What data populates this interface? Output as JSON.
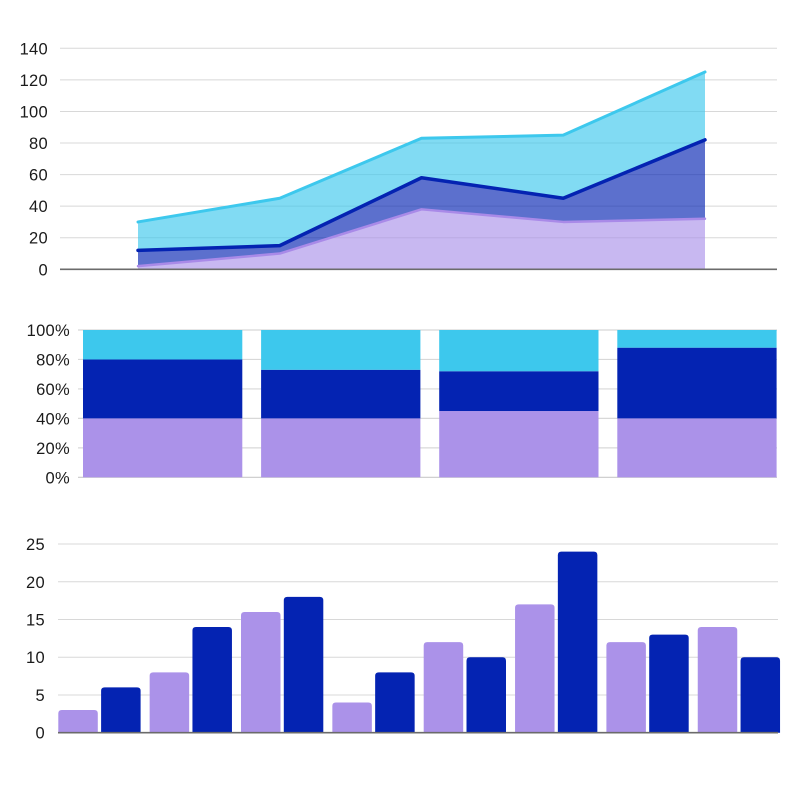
{
  "page": {
    "background": "#ffffff"
  },
  "palette": {
    "purple": "#AB92E9",
    "navy": "#0423B2",
    "cyan": "#3DC8ED",
    "purple_edge_line": "#A98AE8",
    "gridline": "#D8D8D8",
    "axis_line_dark": "#6B6B6B",
    "axis_line_light": "#C9C9C9",
    "label_color": "#1B1B1B",
    "area_fill_opacity": 0.65
  },
  "chart_data": [
    {
      "type": "area",
      "stacked": false,
      "note": "layered area chart, three overlapping series drawn as bands between lines",
      "num_points": 5,
      "series": [
        {
          "name": "cyan",
          "values": [
            30,
            45,
            83,
            85,
            125
          ]
        },
        {
          "name": "navy",
          "values": [
            12,
            15,
            58,
            45,
            82
          ]
        },
        {
          "name": "purple",
          "values": [
            2,
            10,
            38,
            30,
            32
          ]
        }
      ],
      "ylim": [
        0,
        140
      ],
      "yticks": [
        0,
        20,
        40,
        60,
        80,
        100,
        120,
        140
      ],
      "ytick_labels": [
        "0",
        "20",
        "40",
        "60",
        "80",
        "100",
        "120",
        "140"
      ],
      "grid": true,
      "legend": false,
      "xtick_labels": []
    },
    {
      "type": "bar",
      "subtype": "stacked-100-percent",
      "num_bars": 4,
      "series": [
        {
          "name": "purple",
          "values_pct": [
            40,
            40,
            45,
            40
          ]
        },
        {
          "name": "navy",
          "values_pct": [
            40,
            33,
            27,
            48
          ]
        },
        {
          "name": "cyan",
          "values_pct": [
            20,
            27,
            28,
            12
          ]
        }
      ],
      "ylim_pct": [
        0,
        100
      ],
      "yticks_pct": [
        0,
        20,
        40,
        60,
        80,
        100
      ],
      "ytick_labels": [
        "0%",
        "20%",
        "40%",
        "60%",
        "80%",
        "100%"
      ],
      "grid": true,
      "legend": false,
      "xtick_labels": []
    },
    {
      "type": "bar",
      "subtype": "grouped",
      "num_groups": 8,
      "series": [
        {
          "name": "purple",
          "values": [
            3,
            8,
            16,
            4,
            12,
            17,
            12,
            14
          ]
        },
        {
          "name": "navy",
          "values": [
            6,
            14,
            18,
            8,
            10,
            24,
            13,
            10
          ]
        }
      ],
      "ylim": [
        0,
        25
      ],
      "yticks": [
        0,
        5,
        10,
        15,
        20,
        25
      ],
      "ytick_labels": [
        "0",
        "5",
        "10",
        "15",
        "20",
        "25"
      ],
      "grid": true,
      "legend": false,
      "xtick_labels": []
    }
  ]
}
